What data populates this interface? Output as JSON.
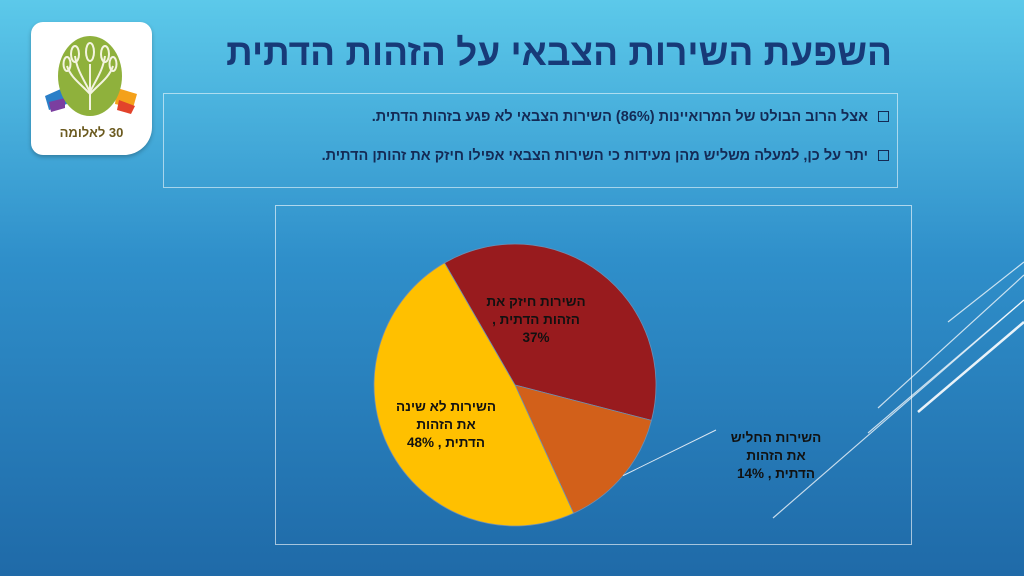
{
  "title": "השפעת השירות הצבאי על הזהות הדתית",
  "logo": {
    "text": "30 לאלומה"
  },
  "bullets": [
    "אצל הרוב הבולט של המרואיינות (86%) השירות הצבאי לא פגע בזהות הדתית.",
    "יתר על כן, למעלה משליש מהן מעידות כי השירות הצבאי אפילו חיזק את זהותן הדתית."
  ],
  "chart_data": {
    "type": "pie",
    "slices": [
      {
        "label_lines": [
          "השירות חיזק את",
          "הזהות הדתית ,",
          "37%"
        ],
        "value": 37,
        "color": "#981b1e"
      },
      {
        "label_lines": [
          "השירות החליש",
          "את הזהות",
          "הדתית , 14%"
        ],
        "value": 14,
        "color": "#d2601a"
      },
      {
        "label_lines": [
          "השירות לא שינה",
          "את הזהות",
          "הדתית , 48%"
        ],
        "value": 48,
        "color": "#ffc000"
      }
    ],
    "start_angle_deg": 330,
    "legend": "none"
  }
}
